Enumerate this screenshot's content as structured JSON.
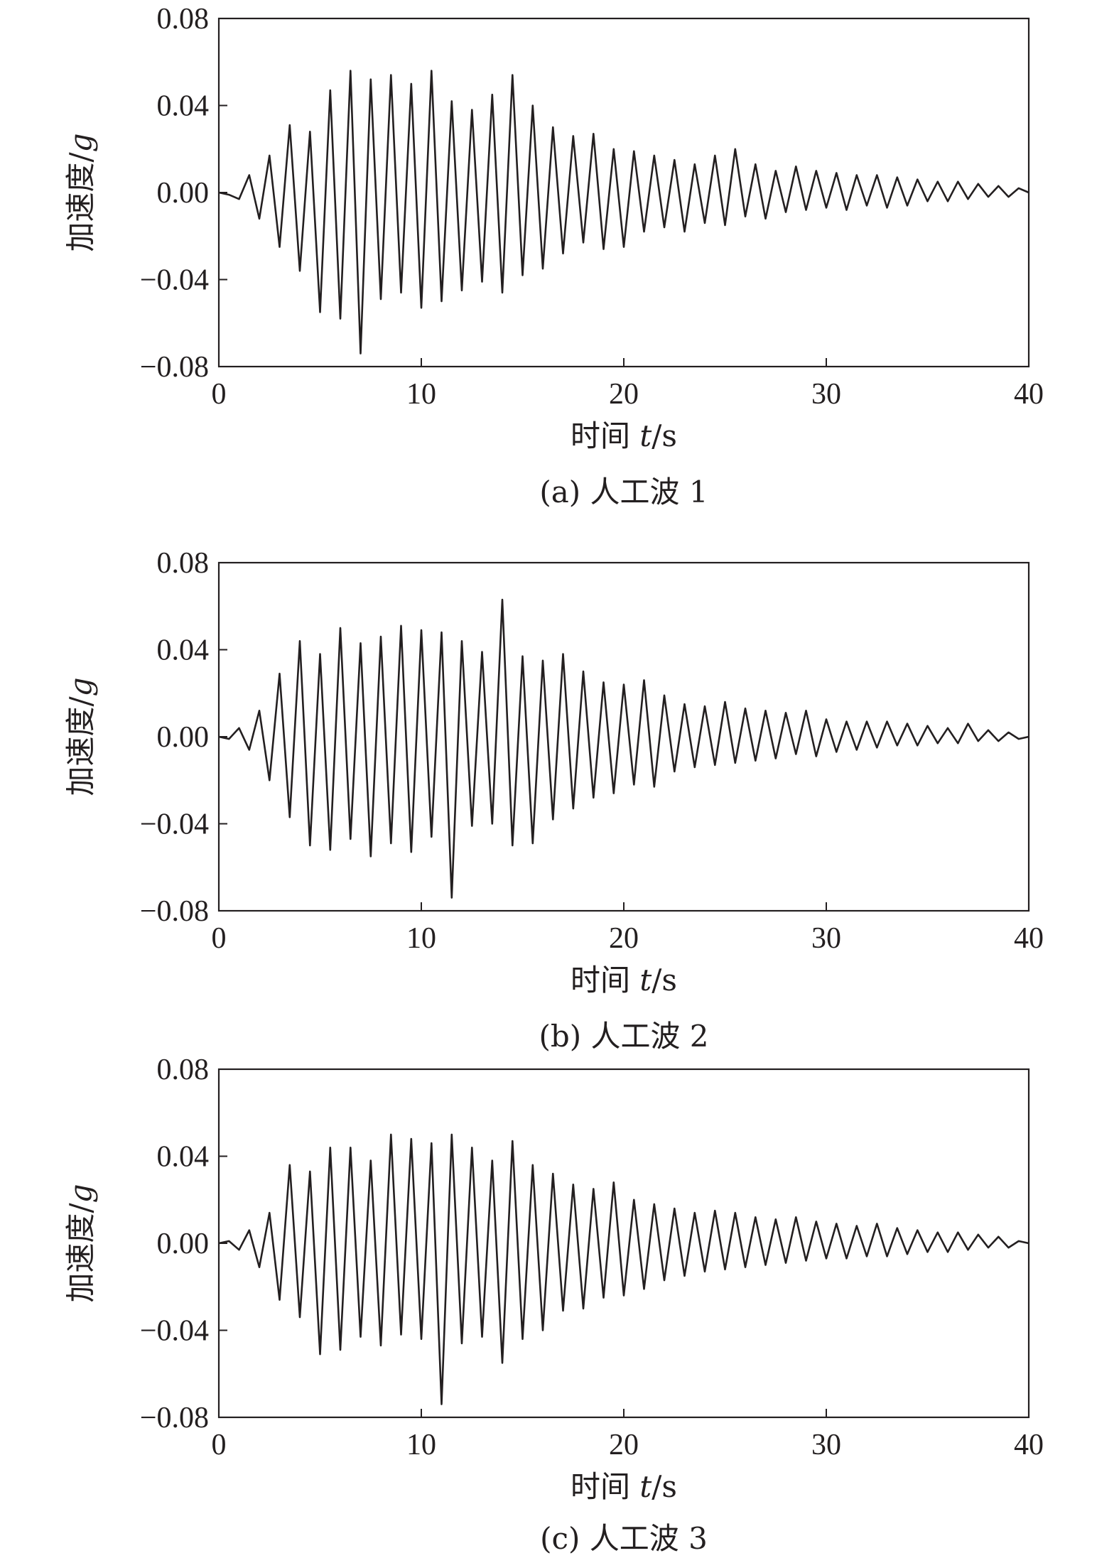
{
  "chart_data": [
    {
      "type": "line",
      "caption": "(a) 人工波 1",
      "xlabel_main": "时间 ",
      "xlabel_var": "t",
      "xlabel_unit": "/s",
      "ylabel_main": "加速度/",
      "ylabel_unit": "g",
      "xlim": [
        0,
        40
      ],
      "ylim": [
        -0.08,
        0.08
      ],
      "x_ticks": [
        0,
        10,
        20,
        30,
        40
      ],
      "x_tick_labels": [
        "0",
        "10",
        "20",
        "30",
        "40"
      ],
      "y_ticks": [
        0.08,
        0.04,
        0.0,
        -0.04,
        -0.08
      ],
      "y_tick_labels": [
        "0.08",
        "0.04",
        "0.00",
        "−0.04",
        "−0.08"
      ],
      "grid": false,
      "legend": "none",
      "series": [
        {
          "x": [
            0,
            0.5,
            1.0,
            1.5,
            2.0,
            2.5,
            3.0,
            3.5,
            4.0,
            4.5,
            5.0,
            5.5,
            6.0,
            6.5,
            7.0,
            7.5,
            8.0,
            8.5,
            9.0,
            9.5,
            10.0,
            10.5,
            11.0,
            11.5,
            12.0,
            12.5,
            13.0,
            13.5,
            14.0,
            14.5,
            15.0,
            15.5,
            16.0,
            16.5,
            17.0,
            17.5,
            18.0,
            18.5,
            19.0,
            19.5,
            20.0,
            20.5,
            21.0,
            21.5,
            22.0,
            22.5,
            23.0,
            23.5,
            24.0,
            24.5,
            25.0,
            25.5,
            26.0,
            26.5,
            27.0,
            27.5,
            28.0,
            28.5,
            29.0,
            29.5,
            30.0,
            30.5,
            31.0,
            31.5,
            32.0,
            32.5,
            33.0,
            33.5,
            34.0,
            34.5,
            35.0,
            35.5,
            36.0,
            36.5,
            37.0,
            37.5,
            38.0,
            38.5,
            39.0,
            39.5,
            40.0
          ],
          "y": [
            0.0,
            -0.001,
            -0.003,
            0.008,
            -0.012,
            0.017,
            -0.025,
            0.031,
            -0.036,
            0.028,
            -0.055,
            0.047,
            -0.058,
            0.056,
            -0.074,
            0.052,
            -0.049,
            0.054,
            -0.046,
            0.05,
            -0.053,
            0.056,
            -0.05,
            0.042,
            -0.045,
            0.038,
            -0.041,
            0.045,
            -0.046,
            0.054,
            -0.038,
            0.04,
            -0.035,
            0.03,
            -0.028,
            0.026,
            -0.023,
            0.027,
            -0.026,
            0.02,
            -0.025,
            0.019,
            -0.018,
            0.017,
            -0.016,
            0.015,
            -0.018,
            0.013,
            -0.014,
            0.017,
            -0.015,
            0.02,
            -0.011,
            0.013,
            -0.012,
            0.01,
            -0.009,
            0.012,
            -0.008,
            0.01,
            -0.007,
            0.009,
            -0.008,
            0.008,
            -0.006,
            0.008,
            -0.007,
            0.007,
            -0.006,
            0.006,
            -0.004,
            0.005,
            -0.004,
            0.005,
            -0.003,
            0.004,
            -0.002,
            0.003,
            -0.002,
            0.002,
            0.0
          ]
        }
      ]
    },
    {
      "type": "line",
      "caption": "(b) 人工波 2",
      "xlabel_main": "时间 ",
      "xlabel_var": "t",
      "xlabel_unit": "/s",
      "ylabel_main": "加速度/",
      "ylabel_unit": "g",
      "xlim": [
        0,
        40
      ],
      "ylim": [
        -0.08,
        0.08
      ],
      "x_ticks": [
        0,
        10,
        20,
        30,
        40
      ],
      "x_tick_labels": [
        "0",
        "10",
        "20",
        "30",
        "40"
      ],
      "y_ticks": [
        0.08,
        0.04,
        0.0,
        -0.04,
        -0.08
      ],
      "y_tick_labels": [
        "0.08",
        "0.04",
        "0.00",
        "−0.04",
        "−0.08"
      ],
      "grid": false,
      "legend": "none",
      "series": [
        {
          "x": [
            0,
            0.5,
            1.0,
            1.5,
            2.0,
            2.5,
            3.0,
            3.5,
            4.0,
            4.5,
            5.0,
            5.5,
            6.0,
            6.5,
            7.0,
            7.5,
            8.0,
            8.5,
            9.0,
            9.5,
            10.0,
            10.5,
            11.0,
            11.5,
            12.0,
            12.5,
            13.0,
            13.5,
            14.0,
            14.5,
            15.0,
            15.5,
            16.0,
            16.5,
            17.0,
            17.5,
            18.0,
            18.5,
            19.0,
            19.5,
            20.0,
            20.5,
            21.0,
            21.5,
            22.0,
            22.5,
            23.0,
            23.5,
            24.0,
            24.5,
            25.0,
            25.5,
            26.0,
            26.5,
            27.0,
            27.5,
            28.0,
            28.5,
            29.0,
            29.5,
            30.0,
            30.5,
            31.0,
            31.5,
            32.0,
            32.5,
            33.0,
            33.5,
            34.0,
            34.5,
            35.0,
            35.5,
            36.0,
            36.5,
            37.0,
            37.5,
            38.0,
            38.5,
            39.0,
            39.5,
            40.0
          ],
          "y": [
            0.0,
            -0.001,
            0.004,
            -0.006,
            0.012,
            -0.02,
            0.029,
            -0.037,
            0.044,
            -0.05,
            0.038,
            -0.052,
            0.05,
            -0.047,
            0.043,
            -0.055,
            0.046,
            -0.049,
            0.051,
            -0.053,
            0.049,
            -0.046,
            0.048,
            -0.074,
            0.044,
            -0.041,
            0.039,
            -0.04,
            0.063,
            -0.05,
            0.037,
            -0.049,
            0.035,
            -0.038,
            0.038,
            -0.033,
            0.03,
            -0.028,
            0.025,
            -0.026,
            0.024,
            -0.022,
            0.026,
            -0.023,
            0.019,
            -0.016,
            0.015,
            -0.014,
            0.014,
            -0.013,
            0.016,
            -0.012,
            0.013,
            -0.011,
            0.012,
            -0.01,
            0.011,
            -0.008,
            0.012,
            -0.009,
            0.008,
            -0.007,
            0.007,
            -0.006,
            0.007,
            -0.005,
            0.007,
            -0.004,
            0.006,
            -0.004,
            0.005,
            -0.003,
            0.004,
            -0.003,
            0.006,
            -0.002,
            0.003,
            -0.002,
            0.002,
            -0.001,
            0.0
          ]
        }
      ]
    },
    {
      "type": "line",
      "caption": "(c) 人工波 3",
      "xlabel_main": "时间 ",
      "xlabel_var": "t",
      "xlabel_unit": "/s",
      "ylabel_main": "加速度/",
      "ylabel_unit": "g",
      "xlim": [
        0,
        40
      ],
      "ylim": [
        -0.08,
        0.08
      ],
      "x_ticks": [
        0,
        10,
        20,
        30,
        40
      ],
      "x_tick_labels": [
        "0",
        "10",
        "20",
        "30",
        "40"
      ],
      "y_ticks": [
        0.08,
        0.04,
        0.0,
        -0.04,
        -0.08
      ],
      "y_tick_labels": [
        "0.08",
        "0.04",
        "0.00",
        "−0.04",
        "−0.08"
      ],
      "grid": false,
      "legend": "none",
      "series": [
        {
          "x": [
            0,
            0.5,
            1.0,
            1.5,
            2.0,
            2.5,
            3.0,
            3.5,
            4.0,
            4.5,
            5.0,
            5.5,
            6.0,
            6.5,
            7.0,
            7.5,
            8.0,
            8.5,
            9.0,
            9.5,
            10.0,
            10.5,
            11.0,
            11.5,
            12.0,
            12.5,
            13.0,
            13.5,
            14.0,
            14.5,
            15.0,
            15.5,
            16.0,
            16.5,
            17.0,
            17.5,
            18.0,
            18.5,
            19.0,
            19.5,
            20.0,
            20.5,
            21.0,
            21.5,
            22.0,
            22.5,
            23.0,
            23.5,
            24.0,
            24.5,
            25.0,
            25.5,
            26.0,
            26.5,
            27.0,
            27.5,
            28.0,
            28.5,
            29.0,
            29.5,
            30.0,
            30.5,
            31.0,
            31.5,
            32.0,
            32.5,
            33.0,
            33.5,
            34.0,
            34.5,
            35.0,
            35.5,
            36.0,
            36.5,
            37.0,
            37.5,
            38.0,
            38.5,
            39.0,
            39.5,
            40.0
          ],
          "y": [
            0.0,
            0.001,
            -0.003,
            0.006,
            -0.011,
            0.014,
            -0.026,
            0.036,
            -0.034,
            0.033,
            -0.051,
            0.044,
            -0.049,
            0.044,
            -0.043,
            0.038,
            -0.047,
            0.05,
            -0.042,
            0.048,
            -0.044,
            0.046,
            -0.074,
            0.05,
            -0.046,
            0.044,
            -0.043,
            0.038,
            -0.055,
            0.047,
            -0.044,
            0.036,
            -0.04,
            0.032,
            -0.031,
            0.027,
            -0.03,
            0.025,
            -0.025,
            0.028,
            -0.024,
            0.02,
            -0.021,
            0.018,
            -0.017,
            0.016,
            -0.015,
            0.014,
            -0.013,
            0.015,
            -0.012,
            0.014,
            -0.011,
            0.012,
            -0.01,
            0.011,
            -0.009,
            0.012,
            -0.008,
            0.01,
            -0.007,
            0.009,
            -0.007,
            0.008,
            -0.006,
            0.009,
            -0.006,
            0.007,
            -0.005,
            0.006,
            -0.004,
            0.005,
            -0.004,
            0.005,
            -0.003,
            0.004,
            -0.002,
            0.003,
            -0.002,
            0.001,
            0.0
          ]
        }
      ]
    }
  ]
}
